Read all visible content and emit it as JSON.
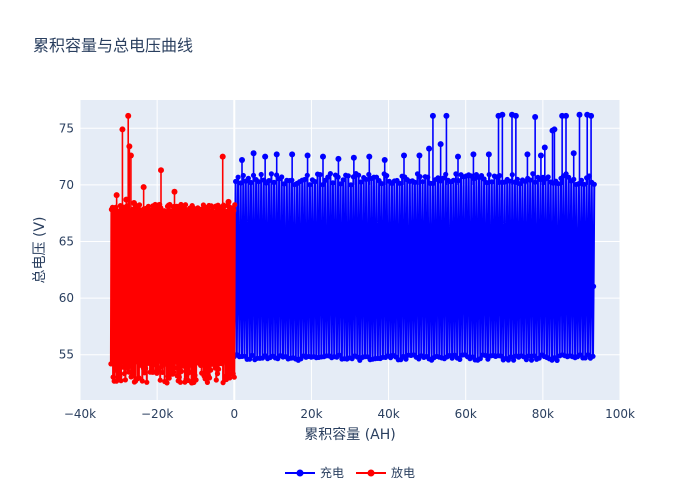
{
  "chart_data": {
    "type": "line",
    "title": "累积容量与总电压曲线",
    "xlabel": "累积容量 (AH)",
    "ylabel": "总电压 (V)",
    "xlim": [
      -40000,
      100000
    ],
    "ylim": [
      51,
      77.5
    ],
    "x_ticks": [
      -40000,
      -20000,
      0,
      20000,
      40000,
      60000,
      80000,
      100000
    ],
    "x_tick_labels": [
      "−40k",
      "−20k",
      "0",
      "20k",
      "40k",
      "60k",
      "80k",
      "100k"
    ],
    "y_ticks": [
      55,
      60,
      65,
      70,
      75
    ],
    "y_tick_labels": [
      "55",
      "60",
      "65",
      "70",
      "75"
    ],
    "grid": true,
    "legend_position": "bottom-center",
    "series": [
      {
        "name": "充电",
        "color": "#0000ff",
        "x_range": [
          0,
          93000
        ],
        "y_envelope": {
          "low_band": [
            54.5,
            55.0
          ],
          "high_band": [
            70.0,
            71.0
          ],
          "inner_low": 61.0
        },
        "spike_points": [
          [
            2000,
            72.2
          ],
          [
            5000,
            72.8
          ],
          [
            8000,
            72.5
          ],
          [
            11000,
            72.7
          ],
          [
            15000,
            72.7
          ],
          [
            19000,
            72.6
          ],
          [
            23000,
            72.5
          ],
          [
            27000,
            72.3
          ],
          [
            31000,
            72.4
          ],
          [
            35000,
            72.5
          ],
          [
            39000,
            72.2
          ],
          [
            44000,
            72.6
          ],
          [
            48000,
            72.6
          ],
          [
            50500,
            73.2
          ],
          [
            51500,
            76.1
          ],
          [
            53500,
            73.6
          ],
          [
            55000,
            76.1
          ],
          [
            58000,
            72.5
          ],
          [
            62000,
            72.7
          ],
          [
            66000,
            72.7
          ],
          [
            68500,
            76.1
          ],
          [
            69500,
            76.2
          ],
          [
            72000,
            76.2
          ],
          [
            73000,
            76.1
          ],
          [
            76000,
            72.7
          ],
          [
            78000,
            76.0
          ],
          [
            79500,
            72.6
          ],
          [
            80500,
            73.3
          ],
          [
            82500,
            74.8
          ],
          [
            83000,
            74.9
          ],
          [
            85000,
            76.1
          ],
          [
            86000,
            76.1
          ],
          [
            88000,
            72.8
          ],
          [
            89500,
            76.2
          ],
          [
            91500,
            76.2
          ],
          [
            92500,
            76.1
          ]
        ]
      },
      {
        "name": "放电",
        "color": "#ff0000",
        "x_range": [
          -32000,
          0
        ],
        "y_envelope": {
          "low_band": [
            52.5,
            54.5
          ],
          "high_band": [
            67.5,
            68.3
          ]
        },
        "spike_points": [
          [
            -30500,
            69.1
          ],
          [
            -29000,
            74.9
          ],
          [
            -28000,
            68.7
          ],
          [
            -27500,
            76.1
          ],
          [
            -27200,
            73.4
          ],
          [
            -26800,
            72.6
          ],
          [
            -26000,
            68.4
          ],
          [
            -23500,
            69.8
          ],
          [
            -19000,
            71.3
          ],
          [
            -15500,
            69.4
          ],
          [
            -3000,
            72.5
          ],
          [
            -1500,
            68.5
          ]
        ]
      }
    ]
  }
}
